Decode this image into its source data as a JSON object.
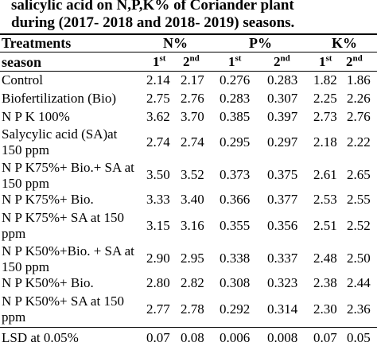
{
  "caption": {
    "line1": "salicylic acid on N,P,K% of  Coriander plant",
    "line2": "during (2017- 2018 and 2018- 2019) seasons."
  },
  "header": {
    "treatments": "Treatments",
    "n": "N%",
    "p": "P%",
    "k": "K%",
    "season": "season",
    "first": "1",
    "first_sup": "st",
    "second": "2",
    "second_sup": "nd"
  },
  "rows": [
    {
      "treatment": "Control",
      "n1": "2.14",
      "n2": "2.17",
      "p1": "0.276",
      "p2": "0.283",
      "k1": "1.82",
      "k2": "1.86"
    },
    {
      "treatment": "Biofertilization (Bio)",
      "n1": "2.75",
      "n2": "2.76",
      "p1": "0.283",
      "p2": "0.307",
      "k1": "2.25",
      "k2": "2.26"
    },
    {
      "treatment": "N P K 100%",
      "n1": "3.62",
      "n2": "3.70",
      "p1": "0.385",
      "p2": "0.397",
      "k1": "2.73",
      "k2": "2.76"
    },
    {
      "treatment": "Salycylic acid (SA)at 150 ppm",
      "n1": "2.74",
      "n2": "2.74",
      "p1": "0.295",
      "p2": "0.297",
      "k1": "2.18",
      "k2": "2.22"
    },
    {
      "treatment": "N P K75%+ Bio.+ SA at 150 ppm",
      "n1": "3.50",
      "n2": "3.52",
      "p1": "0.373",
      "p2": "0.375",
      "k1": "2.61",
      "k2": "2.65"
    },
    {
      "treatment": "N P K75%+ Bio.",
      "n1": "3.33",
      "n2": "3.40",
      "p1": "0.366",
      "p2": "0.377",
      "k1": "2.53",
      "k2": "2.55"
    },
    {
      "treatment": "N P K75%+ SA at 150 ppm",
      "n1": "3.15",
      "n2": "3.16",
      "p1": "0.355",
      "p2": "0.356",
      "k1": "2.51",
      "k2": "2.52"
    },
    {
      "treatment": "N P K50%+Bio. + SA at 150 ppm",
      "n1": "2.90",
      "n2": "2.95",
      "p1": "0.338",
      "p2": "0.337",
      "k1": "2.48",
      "k2": "2.50"
    },
    {
      "treatment": "N P K50%+ Bio.",
      "n1": "2.80",
      "n2": "2.82",
      "p1": "0.308",
      "p2": "0.323",
      "k1": "2.38",
      "k2": "2.44"
    },
    {
      "treatment": "N P K50%+ SA at 150 ppm",
      "n1": "2.77",
      "n2": "2.78",
      "p1": "0.292",
      "p2": "0.314",
      "k1": "2.30",
      "k2": "2.36"
    },
    {
      "treatment": "LSD at 0.05%",
      "n1": "0.07",
      "n2": "0.08",
      "p1": "0.006",
      "p2": "0.008",
      "k1": "0.07",
      "k2": "0.05"
    }
  ]
}
